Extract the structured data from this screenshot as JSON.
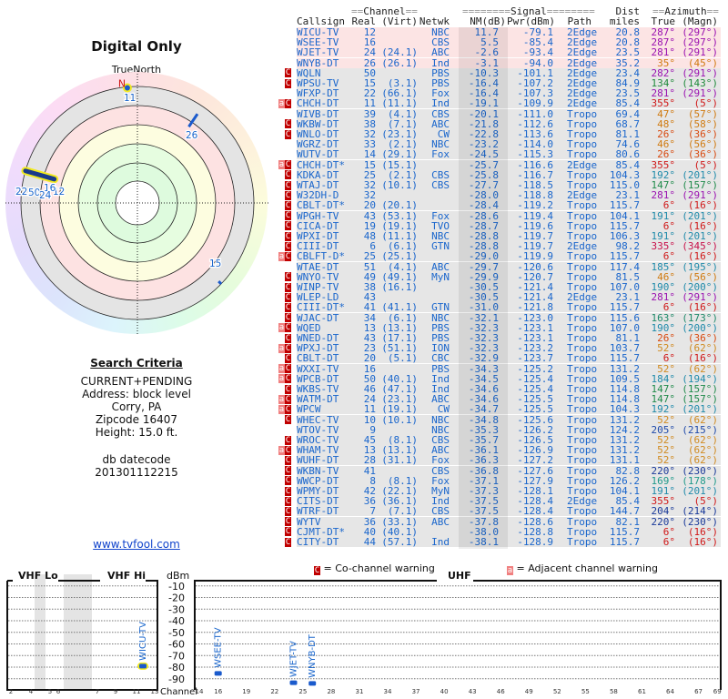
{
  "polar": {
    "title": "Digital Only",
    "north_label": "TrueNorth",
    "north_marker": "N",
    "markers": [
      {
        "channel": "11",
        "azimuth": 355,
        "kind": "dot",
        "highlight": true
      },
      {
        "channel": "26",
        "azimuth": 35,
        "kind": "line"
      },
      {
        "channel": "15",
        "azimuth": 134,
        "kind": "line"
      },
      {
        "channel": "12",
        "azimuth": 287,
        "kind": "line",
        "highlight": true
      },
      {
        "channel": "16",
        "azimuth": 287,
        "kind": "line"
      },
      {
        "channel": "22",
        "azimuth": 281,
        "kind": "line"
      },
      {
        "channel": "50",
        "azimuth": 282,
        "kind": "line"
      },
      {
        "channel": "24",
        "azimuth": 281,
        "kind": "line"
      }
    ]
  },
  "criteria": {
    "title": "Search Criteria",
    "mode": "CURRENT+PENDING",
    "address": "Address: block level",
    "city": "Corry, PA",
    "zip": "Zipcode 16407",
    "height": "Height: 15.0 ft.",
    "db_label": "db datecode",
    "db_value": "201301112215",
    "link": "www.tvfool.com"
  },
  "table": {
    "headers": {
      "channel_group": "Channel",
      "signal_group": "Signal",
      "azimuth_group": "Azimuth",
      "dist_top": "Dist",
      "callsign": "Callsign",
      "real": "Real",
      "virt": "(Virt)",
      "netwk": "Netwk",
      "nm": "NM(dB)",
      "pwr": "Pwr(dBm)",
      "path": "Path",
      "miles": "miles",
      "true": "True",
      "magn": "(Magn)"
    },
    "azimuth_colors": {
      "287": "#9a10b0",
      "281": "#9a10b0",
      "282": "#9a10b0",
      "35": "#d07a10",
      "134": "#1f8a3a",
      "355": "#d01818",
      "47": "#d07a10",
      "48": "#d07a10",
      "26": "#d84a10",
      "46": "#d07a10",
      "192": "#1f8aaa",
      "147": "#1f8a4a",
      "6": "#d01818",
      "191": "#1f8aaa",
      "335": "#c8104a",
      "185": "#1f8aaa",
      "190": "#1f8aaa",
      "163": "#1f8a6a",
      "52": "#d08a20",
      "184": "#1f8aaa",
      "205": "#1f4aaa",
      "220": "#1a3a9a",
      "169": "#1f9a8a",
      "204": "#1a3a9a"
    },
    "rows": [
      [
        "",
        "WICU-TV",
        "12",
        "",
        "NBC",
        "11.7",
        "-79.1",
        "2Edge",
        "20.8",
        "287°",
        "(297°)"
      ],
      [
        "",
        "WSEE-TV",
        "16",
        "",
        "CBS",
        "5.5",
        "-85.4",
        "2Edge",
        "20.8",
        "287°",
        "(297°)"
      ],
      [
        "",
        "WJET-TV",
        "24",
        "(24.1)",
        "ABC",
        "-2.6",
        "-93.4",
        "2Edge",
        "23.5",
        "281°",
        "(291°)"
      ],
      [
        "",
        "WNYB-DT",
        "26",
        "(26.1)",
        "Ind",
        "-3.1",
        "-94.0",
        "2Edge",
        "35.2",
        "35°",
        "(45°)"
      ],
      [
        "C",
        "WQLN",
        "50",
        "",
        "PBS",
        "-10.3",
        "-101.1",
        "2Edge",
        "23.4",
        "282°",
        "(291°)"
      ],
      [
        "C",
        "WPSU-TV",
        "15",
        "(3.1)",
        "PBS",
        "-16.4",
        "-107.2",
        "2Edge",
        "84.9",
        "134°",
        "(143°)"
      ],
      [
        "",
        "WFXP-DT",
        "22",
        "(66.1)",
        "Fox",
        "-16.4",
        "-107.3",
        "2Edge",
        "23.5",
        "281°",
        "(291°)"
      ],
      [
        "aC",
        "CHCH-DT",
        "11",
        "(11.1)",
        "Ind",
        "-19.1",
        "-109.9",
        "2Edge",
        "85.4",
        "355°",
        "(5°)"
      ],
      [
        "",
        "WIVB-DT",
        "39",
        "(4.1)",
        "CBS",
        "-20.1",
        "-111.0",
        "Tropo",
        "69.4",
        "47°",
        "(57°)"
      ],
      [
        "C",
        "WKBW-DT",
        "38",
        "(7.1)",
        "ABC",
        "-21.8",
        "-112.6",
        "Tropo",
        "68.7",
        "48°",
        "(58°)"
      ],
      [
        "C",
        "WNLO-DT",
        "32",
        "(23.1)",
        "CW",
        "-22.8",
        "-113.6",
        "Tropo",
        "81.1",
        "26°",
        "(36°)"
      ],
      [
        "",
        "WGRZ-DT",
        "33",
        "(2.1)",
        "NBC",
        "-23.2",
        "-114.0",
        "Tropo",
        "74.6",
        "46°",
        "(56°)"
      ],
      [
        "",
        "WUTV-DT",
        "14",
        "(29.1)",
        "Fox",
        "-24.5",
        "-115.3",
        "Tropo",
        "80.6",
        "26°",
        "(36°)"
      ],
      [
        "aC",
        "CHCH-DT*",
        "15",
        "(15.1)",
        "",
        "-25.7",
        "-116.6",
        "2Edge",
        "85.4",
        "355°",
        "(5°)"
      ],
      [
        "C",
        "KDKA-DT",
        "25",
        "(2.1)",
        "CBS",
        "-25.8",
        "-116.7",
        "Tropo",
        "104.3",
        "192°",
        "(201°)"
      ],
      [
        "C",
        "WTAJ-DT",
        "32",
        "(10.1)",
        "CBS",
        "-27.7",
        "-118.5",
        "Tropo",
        "115.0",
        "147°",
        "(157°)"
      ],
      [
        "C",
        "W32DH-D",
        "32",
        "",
        "",
        "-28.0",
        "-118.8",
        "2Edge",
        "23.1",
        "281°",
        "(291°)"
      ],
      [
        "C",
        "CBLT-DT*",
        "20",
        "(20.1)",
        "",
        "-28.4",
        "-119.2",
        "Tropo",
        "115.7",
        "6°",
        "(16°)"
      ],
      [
        "C",
        "WPGH-TV",
        "43",
        "(53.1)",
        "Fox",
        "-28.6",
        "-119.4",
        "Tropo",
        "104.1",
        "191°",
        "(201°)"
      ],
      [
        "C",
        "CICA-DT",
        "19",
        "(19.1)",
        "TVO",
        "-28.7",
        "-119.6",
        "Tropo",
        "115.7",
        "6°",
        "(16°)"
      ],
      [
        "C",
        "WPXI-DT",
        "48",
        "(11.1)",
        "NBC",
        "-28.8",
        "-119.7",
        "Tropo",
        "106.3",
        "191°",
        "(201°)"
      ],
      [
        "C",
        "CIII-DT",
        "6",
        "(6.1)",
        "GTN",
        "-28.8",
        "-119.7",
        "2Edge",
        "98.2",
        "335°",
        "(345°)"
      ],
      [
        "aC",
        "CBLFT-D*",
        "25",
        "(25.1)",
        "",
        "-29.0",
        "-119.9",
        "Tropo",
        "115.7",
        "6°",
        "(16°)"
      ],
      [
        "",
        "WTAE-DT",
        "51",
        "(4.1)",
        "ABC",
        "-29.7",
        "-120.6",
        "Tropo",
        "117.4",
        "185°",
        "(195°)"
      ],
      [
        "C",
        "WNYO-TV",
        "49",
        "(49.1)",
        "MyN",
        "-29.9",
        "-120.7",
        "Tropo",
        "81.5",
        "46°",
        "(56°)"
      ],
      [
        "C",
        "WINP-TV",
        "38",
        "(16.1)",
        "",
        "-30.5",
        "-121.4",
        "Tropo",
        "107.0",
        "190°",
        "(200°)"
      ],
      [
        "C",
        "WLEP-LD",
        "43",
        "",
        "",
        "-30.5",
        "-121.4",
        "2Edge",
        "23.1",
        "281°",
        "(291°)"
      ],
      [
        "C",
        "CIII-DT*",
        "41",
        "(41.1)",
        "GTN",
        "-31.0",
        "-121.8",
        "Tropo",
        "115.7",
        "6°",
        "(16°)"
      ],
      [
        "C",
        "WJAC-DT",
        "34",
        "(6.1)",
        "NBC",
        "-32.1",
        "-123.0",
        "Tropo",
        "115.6",
        "163°",
        "(173°)"
      ],
      [
        "aC",
        "WQED",
        "13",
        "(13.1)",
        "PBS",
        "-32.3",
        "-123.1",
        "Tropo",
        "107.0",
        "190°",
        "(200°)"
      ],
      [
        "C",
        "WNED-DT",
        "43",
        "(17.1)",
        "PBS",
        "-32.3",
        "-123.1",
        "Tropo",
        "81.1",
        "26°",
        "(36°)"
      ],
      [
        "aC",
        "WPXJ-DT",
        "23",
        "(51.1)",
        "ION",
        "-32.3",
        "-123.2",
        "Tropo",
        "103.7",
        "52°",
        "(62°)"
      ],
      [
        "C",
        "CBLT-DT",
        "20",
        "(5.1)",
        "CBC",
        "-32.9",
        "-123.7",
        "Tropo",
        "115.7",
        "6°",
        "(16°)"
      ],
      [
        "aC",
        "WXXI-TV",
        "16",
        "",
        "PBS",
        "-34.3",
        "-125.2",
        "Tropo",
        "131.2",
        "52°",
        "(62°)"
      ],
      [
        "aC",
        "WPCB-DT",
        "50",
        "(40.1)",
        "Ind",
        "-34.5",
        "-125.4",
        "Tropo",
        "109.5",
        "184°",
        "(194°)"
      ],
      [
        "C",
        "WKBS-TV",
        "46",
        "(47.1)",
        "Ind",
        "-34.6",
        "-125.4",
        "Tropo",
        "114.8",
        "147°",
        "(157°)"
      ],
      [
        "aC",
        "WATM-DT",
        "24",
        "(23.1)",
        "ABC",
        "-34.6",
        "-125.5",
        "Tropo",
        "114.8",
        "147°",
        "(157°)"
      ],
      [
        "aC",
        "WPCW",
        "11",
        "(19.1)",
        "CW",
        "-34.7",
        "-125.5",
        "Tropo",
        "104.3",
        "192°",
        "(201°)"
      ],
      [
        "C",
        "WHEC-TV",
        "10",
        "(10.1)",
        "NBC",
        "-34.8",
        "-125.6",
        "Tropo",
        "131.2",
        "52°",
        "(62°)"
      ],
      [
        "",
        "WTOV-TV",
        "9",
        "",
        "NBC",
        "-35.3",
        "-126.2",
        "Tropo",
        "124.2",
        "205°",
        "(215°)"
      ],
      [
        "C",
        "WROC-TV",
        "45",
        "(8.1)",
        "CBS",
        "-35.7",
        "-126.5",
        "Tropo",
        "131.2",
        "52°",
        "(62°)"
      ],
      [
        "aC",
        "WHAM-TV",
        "13",
        "(13.1)",
        "ABC",
        "-36.1",
        "-126.9",
        "Tropo",
        "131.2",
        "52°",
        "(62°)"
      ],
      [
        "C",
        "WUHF-DT",
        "28",
        "(31.1)",
        "Fox",
        "-36.3",
        "-127.2",
        "Tropo",
        "131.1",
        "52°",
        "(62°)"
      ],
      [
        "C",
        "WKBN-TV",
        "41",
        "",
        "CBS",
        "-36.8",
        "-127.6",
        "Tropo",
        "82.8",
        "220°",
        "(230°)"
      ],
      [
        "C",
        "WWCP-DT",
        "8",
        "(8.1)",
        "Fox",
        "-37.1",
        "-127.9",
        "Tropo",
        "126.2",
        "169°",
        "(178°)"
      ],
      [
        "C",
        "WPMY-DT",
        "42",
        "(22.1)",
        "MyN",
        "-37.3",
        "-128.1",
        "Tropo",
        "104.1",
        "191°",
        "(201°)"
      ],
      [
        "C",
        "CITS-DT",
        "36",
        "(36.1)",
        "Ind",
        "-37.5",
        "-128.4",
        "2Edge",
        "85.4",
        "355°",
        "(5°)"
      ],
      [
        "C",
        "WTRF-DT",
        "7",
        "(7.1)",
        "CBS",
        "-37.5",
        "-128.4",
        "Tropo",
        "144.7",
        "204°",
        "(214°)"
      ],
      [
        "C",
        "WYTV",
        "36",
        "(33.1)",
        "ABC",
        "-37.8",
        "-128.6",
        "Tropo",
        "82.1",
        "220°",
        "(230°)"
      ],
      [
        "C",
        "CJMT-DT*",
        "40",
        "(40.1)",
        "",
        "-38.0",
        "-128.8",
        "Tropo",
        "115.7",
        "6°",
        "(16°)"
      ],
      [
        "C",
        "CITY-DT",
        "44",
        "(57.1)",
        "Ind",
        "-38.1",
        "-128.9",
        "Tropo",
        "115.7",
        "6°",
        "(16°)"
      ]
    ]
  },
  "legend": {
    "co_symbol": "C",
    "co_label": "= Co-channel warning",
    "adj_symbol": "a",
    "adj_label": "= Adjacent channel warning"
  },
  "spectrum": {
    "vhf_lo_label": "VHF Lo",
    "vhf_hi_label": "VHF Hi",
    "uhf_label": "UHF",
    "unit_label": "dBm",
    "channel_label": "Channel",
    "dbm_ticks": [
      "-10",
      "-20",
      "-30",
      "-40",
      "-50",
      "-60",
      "-70",
      "-80",
      "-90"
    ],
    "vhf_channel_ticks": [
      "2",
      "4",
      "5",
      "6",
      "7",
      "9",
      "11",
      "13"
    ],
    "uhf_channel_ticks": [
      "14",
      "16",
      "19",
      "22",
      "25",
      "28",
      "31",
      "34",
      "37",
      "40",
      "43",
      "46",
      "49",
      "52",
      "55",
      "58",
      "61",
      "64",
      "67",
      "69"
    ],
    "stations": [
      {
        "callsign": "WICU-TV",
        "channel": 12,
        "dbm": -79.1,
        "highlight": true
      },
      {
        "callsign": "WSEE-TV",
        "channel": 16,
        "dbm": -85.4
      },
      {
        "callsign": "WJET-TV",
        "channel": 24,
        "dbm": -93.4
      },
      {
        "callsign": "WNYB-DT",
        "channel": 26,
        "dbm": -94.0
      }
    ]
  }
}
